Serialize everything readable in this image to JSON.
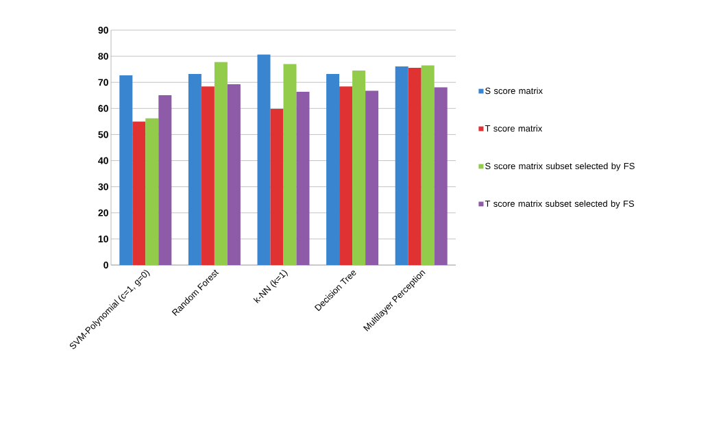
{
  "chart_data": {
    "type": "bar",
    "categories": [
      "SVM-Polynomial (c=1, g=0)",
      "Random Forest",
      "k-NN (k=1)",
      "Decision Tree",
      "Multilayer Perception"
    ],
    "series": [
      {
        "name": "S score matrix",
        "color": "#3a85d0",
        "values": [
          72.7,
          73.2,
          80.7,
          73.2,
          76.1
        ]
      },
      {
        "name": "T score matrix",
        "color": "#e03232",
        "values": [
          55.0,
          68.4,
          59.8,
          68.4,
          75.6
        ]
      },
      {
        "name": "S score matrix subset selected by FS",
        "color": "#92cc4a",
        "values": [
          56.2,
          77.8,
          77.0,
          74.5,
          76.5
        ]
      },
      {
        "name": "T score matrix subset selected by FS",
        "color": "#8e5ba8",
        "values": [
          65.1,
          69.3,
          66.4,
          66.8,
          68.1
        ]
      }
    ],
    "ylim": [
      0,
      90
    ],
    "yticks": [
      0,
      10,
      20,
      30,
      40,
      50,
      60,
      70,
      80,
      90
    ],
    "grid": "y",
    "legend": "right"
  }
}
